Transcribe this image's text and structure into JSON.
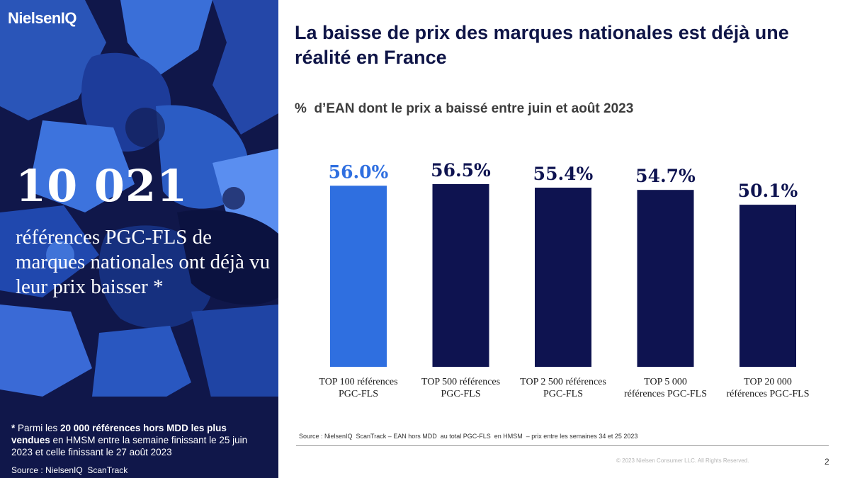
{
  "brand": {
    "logo": "NielsenIQ",
    "colors": {
      "navy": "#10174a",
      "blue": "#2f6fe0",
      "dark_bar": "#0e1350",
      "text_navy": "#0f1547"
    }
  },
  "left_panel": {
    "big_number": "10 021",
    "description": "références PGC-FLS de marques nationales ont déjà vu leur prix baisser *",
    "footnote": {
      "star": "*",
      "part1": " Parmi les ",
      "bold1": "20 000 références hors MDD",
      "part2": " ",
      "bold2": "les plus vendues",
      "part3": " en HMSM entre la semaine finissant le 25 juin 2023 et celle finissant le 27 août 2023"
    },
    "source": "Source : NielsenIQ  ScanTrack"
  },
  "title": "La baisse de prix des marques nationales est déjà une réalité en France",
  "subtitle": "%  d’EAN dont le prix a baissé entre juin et août 2023",
  "chart_data": {
    "type": "bar",
    "categories": [
      "TOP 100 références PGC-FLS",
      "TOP 500 références PGC-FLS",
      "TOP 2 500 références PGC-FLS",
      "TOP 5 000 références PGC-FLS",
      "TOP 20 000 références PGC-FLS"
    ],
    "category_lines": [
      [
        "TOP 100 références",
        "PGC-FLS"
      ],
      [
        "TOP 500 références",
        "PGC-FLS"
      ],
      [
        "TOP 2 500 références",
        "PGC-FLS"
      ],
      [
        "TOP 5 000",
        "références PGC-FLS"
      ],
      [
        "TOP 20 000",
        "références PGC-FLS"
      ]
    ],
    "values": [
      56.0,
      56.5,
      55.4,
      54.7,
      50.1
    ],
    "value_labels": [
      "56.0%",
      "56.5%",
      "55.4%",
      "54.7%",
      "50.1%"
    ],
    "bar_colors": [
      "#2f6fe0",
      "#0e1350",
      "#0e1350",
      "#0e1350",
      "#0e1350"
    ],
    "label_colors": [
      "#2f6fe0",
      "#0e1350",
      "#0e1350",
      "#0e1350",
      "#0e1350"
    ],
    "title": "",
    "xlabel": "",
    "ylabel": "",
    "grid": false
  },
  "source": "Source : NielsenIQ  ScanTrack – EAN hors MDD  au total PGC-FLS  en HMSM  – prix entre les semaines 34 et 25 2023",
  "copyright": "© 2023  Nielsen Consumer LLC. All Rights Reserved.",
  "page_number": "2"
}
